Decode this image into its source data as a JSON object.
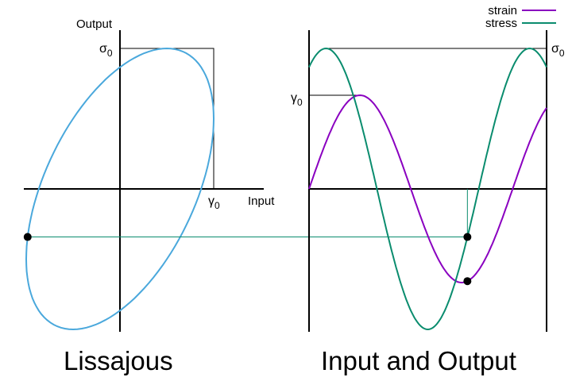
{
  "lissajous": {
    "caption": "Lissajous",
    "y_label": "Output",
    "x_label": "Input",
    "sigma_symbol": "σ",
    "gamma_symbol": "γ",
    "subscript": "0"
  },
  "waves": {
    "caption": "Input and Output",
    "sigma_symbol": "σ",
    "gamma_symbol": "γ",
    "subscript": "0",
    "legend": {
      "strain_label": "strain",
      "stress_label": "stress"
    }
  },
  "colors": {
    "ellipse": "#4aa8dc",
    "strain": "#8a00c0",
    "stress": "#0a8c6e",
    "connector": "#0a8c6e",
    "axis": "#000000"
  },
  "chart_data": {
    "type": "line",
    "series": [
      {
        "name": "strain",
        "amplitude": 1.0,
        "phase_offset_deg": 0
      },
      {
        "name": "stress",
        "amplitude": 1.5,
        "phase_offset_deg": 60
      }
    ],
    "x_range_deg": [
      0,
      420
    ],
    "marked_phase_deg": 280,
    "lissajous": {
      "x_series": "strain",
      "y_series": "stress"
    }
  }
}
